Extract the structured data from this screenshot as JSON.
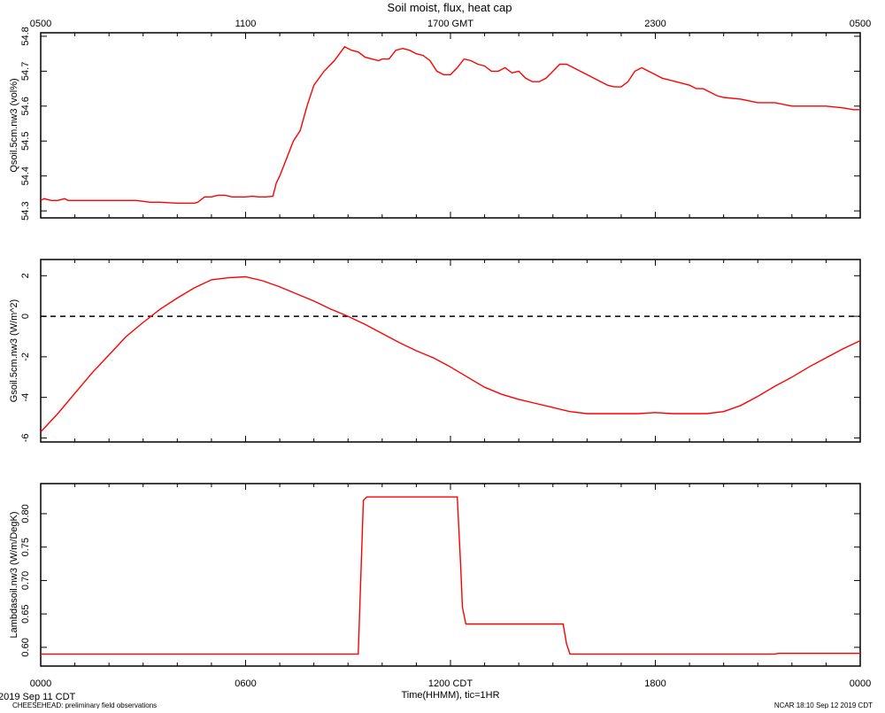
{
  "page": {
    "title": "Soil moist, flux, heat cap",
    "footer_left_date": "2019 Sep 11 CDT",
    "footer_left_note": "CHEESEHEAD: preliminary field observations",
    "footer_right": "NCAR 18:10 Sep 12 2019 CDT"
  },
  "colors": {
    "series": "#ff0000",
    "axis": "#000000",
    "background": "#ffffff"
  },
  "chart_data": [
    {
      "type": "line",
      "ylabel": "Qsoil.5cm.nw3 (vol%)",
      "xlim": [
        0,
        24
      ],
      "ylim": [
        54.28,
        54.81
      ],
      "yticks": [
        54.3,
        54.4,
        54.5,
        54.6,
        54.7,
        54.8
      ],
      "ytick_labels": [
        "54.3",
        "54.4",
        "54.5",
        "54.6",
        "54.7",
        "54.8"
      ],
      "top_axis_labels": [
        {
          "x": 0,
          "label": "0500"
        },
        {
          "x": 6,
          "label": "1100"
        },
        {
          "x": 12,
          "label": "1700 GMT"
        },
        {
          "x": 18,
          "label": "2300"
        },
        {
          "x": 24,
          "label": "0500"
        }
      ],
      "series": [
        {
          "x": [
            0,
            0.1,
            0.3,
            0.5,
            0.7,
            0.8,
            1,
            2,
            2.5,
            2.8,
            3.2,
            3.5,
            4,
            4.5,
            4.6,
            4.8,
            5,
            5.2,
            5.4,
            5.6,
            5.8,
            6,
            6.2,
            6.4,
            6.6,
            6.8,
            6.9,
            7,
            7.2,
            7.4,
            7.6,
            7.8,
            8,
            8.3,
            8.6,
            8.9,
            9.1,
            9.3,
            9.5,
            9.7,
            9.9,
            10,
            10.2,
            10.4,
            10.6,
            10.8,
            11.0,
            11.2,
            11.4,
            11.6,
            11.8,
            12.0,
            12.2,
            12.4,
            12.6,
            12.8,
            13.0,
            13.2,
            13.4,
            13.6,
            13.8,
            14.0,
            14.2,
            14.4,
            14.6,
            14.8,
            15.0,
            15.2,
            15.4,
            15.6,
            15.8,
            16.0,
            16.2,
            16.4,
            16.6,
            16.8,
            17.0,
            17.2,
            17.4,
            17.6,
            17.8,
            18.0,
            18.2,
            18.4,
            18.6,
            18.8,
            19.0,
            19.2,
            19.4,
            19.6,
            19.8,
            20.0,
            20.5,
            21.0,
            21.5,
            22.0,
            22.5,
            23.0,
            23.5,
            23.8,
            24
          ],
          "y": [
            54.33,
            54.335,
            54.33,
            54.33,
            54.335,
            54.33,
            54.33,
            54.33,
            54.33,
            54.33,
            54.325,
            54.325,
            54.322,
            54.322,
            54.325,
            54.34,
            54.34,
            54.345,
            54.345,
            54.34,
            54.34,
            54.34,
            54.342,
            54.34,
            54.34,
            54.342,
            54.38,
            54.4,
            54.45,
            54.5,
            54.53,
            54.6,
            54.66,
            54.7,
            54.73,
            54.77,
            54.76,
            54.755,
            54.74,
            54.735,
            54.73,
            54.735,
            54.735,
            54.76,
            54.765,
            54.76,
            54.75,
            54.745,
            54.73,
            54.7,
            54.69,
            54.69,
            54.71,
            54.735,
            54.73,
            54.72,
            54.715,
            54.7,
            54.7,
            54.71,
            54.695,
            54.7,
            54.68,
            54.67,
            54.67,
            54.68,
            54.7,
            54.72,
            54.72,
            54.71,
            54.7,
            54.69,
            54.68,
            54.67,
            54.66,
            54.655,
            54.655,
            54.67,
            54.7,
            54.71,
            54.7,
            54.69,
            54.68,
            54.675,
            54.67,
            54.665,
            54.66,
            54.65,
            54.65,
            54.64,
            54.63,
            54.625,
            54.62,
            54.61,
            54.61,
            54.6,
            54.6,
            54.6,
            54.595,
            54.59,
            54.59
          ]
        }
      ]
    },
    {
      "type": "line",
      "ylabel": "Gsoil.5cm.nw3 (W/m^2)",
      "xlim": [
        0,
        24
      ],
      "ylim": [
        -6.2,
        2.8
      ],
      "yticks": [
        -6,
        -4,
        -2,
        0,
        2
      ],
      "ytick_labels": [
        "-6",
        "-4",
        "-2",
        "0",
        "2"
      ],
      "reference_line": 0,
      "series": [
        {
          "x": [
            0,
            0.5,
            1,
            1.5,
            2,
            2.5,
            3,
            3.5,
            4,
            4.5,
            5,
            5.5,
            6,
            6.5,
            7,
            7.5,
            8,
            8.5,
            9,
            9.5,
            10,
            10.5,
            11,
            11.5,
            12,
            12.5,
            13,
            13.5,
            14,
            14.5,
            15,
            15.5,
            16,
            16.5,
            17,
            17.5,
            18,
            18.5,
            19,
            19.5,
            20,
            20.5,
            21,
            21.5,
            22,
            22.5,
            23,
            23.5,
            24
          ],
          "y": [
            -5.7,
            -4.8,
            -3.8,
            -2.8,
            -1.9,
            -1.0,
            -0.3,
            0.35,
            0.9,
            1.4,
            1.8,
            1.9,
            1.95,
            1.75,
            1.45,
            1.1,
            0.75,
            0.35,
            0.0,
            -0.4,
            -0.85,
            -1.3,
            -1.7,
            -2.05,
            -2.5,
            -3.0,
            -3.5,
            -3.85,
            -4.1,
            -4.3,
            -4.5,
            -4.7,
            -4.8,
            -4.8,
            -4.8,
            -4.8,
            -4.75,
            -4.8,
            -4.8,
            -4.8,
            -4.7,
            -4.4,
            -3.95,
            -3.45,
            -3.0,
            -2.5,
            -2.05,
            -1.6,
            -1.2
          ]
        }
      ]
    },
    {
      "type": "line",
      "ylabel": "Lambdasoil.nw3 (W/m/DegK)",
      "xlim": [
        0,
        24
      ],
      "ylim": [
        0.572,
        0.845
      ],
      "yticks": [
        0.6,
        0.65,
        0.7,
        0.75,
        0.8
      ],
      "ytick_labels": [
        "0.60",
        "0.65",
        "0.70",
        "0.75",
        "0.80"
      ],
      "xticks": [
        0,
        6,
        12,
        18,
        24
      ],
      "xtick_labels": [
        "0000",
        "0600",
        "1200 CDT",
        "1800",
        "0000"
      ],
      "xlabel": "Time(HHMM), tic=1HR",
      "series": [
        {
          "x": [
            0,
            9.3,
            9.45,
            9.55,
            12.2,
            12.3,
            12.35,
            12.45,
            15.3,
            15.4,
            15.5,
            21.5,
            21.6,
            24
          ],
          "y": [
            0.59,
            0.59,
            0.82,
            0.825,
            0.825,
            0.72,
            0.66,
            0.635,
            0.635,
            0.605,
            0.59,
            0.59,
            0.591,
            0.591
          ]
        }
      ]
    }
  ]
}
